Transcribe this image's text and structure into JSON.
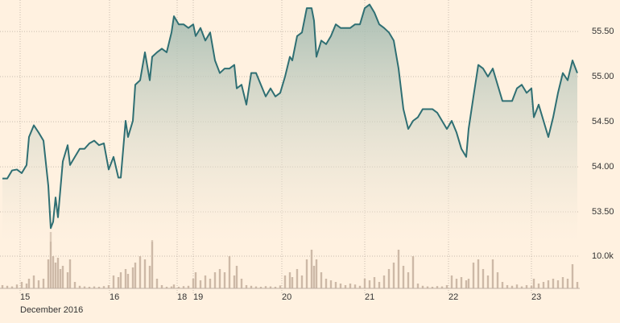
{
  "chart_data": {
    "type": "line",
    "x": [
      3,
      9,
      15,
      21,
      27,
      33,
      36,
      42,
      48,
      54,
      60,
      63,
      66,
      69,
      72,
      75,
      78,
      84,
      87,
      93,
      99,
      105,
      111,
      117,
      123,
      129,
      135,
      141,
      147,
      150,
      156,
      159,
      165,
      168,
      174,
      180,
      186,
      189,
      195,
      201,
      207,
      213,
      216,
      222,
      228,
      234,
      240,
      243,
      249,
      255,
      261,
      267,
      273,
      279,
      285,
      291,
      294,
      300,
      306,
      312,
      318,
      324,
      330,
      336,
      342,
      348,
      354,
      360,
      363,
      369,
      375,
      381,
      387,
      390,
      393,
      399,
      405,
      411,
      417,
      423,
      429,
      435,
      441,
      447,
      453,
      459,
      465,
      471,
      477,
      483,
      489,
      495,
      501,
      507,
      513,
      519,
      525,
      531,
      537,
      543,
      549,
      555,
      561,
      567,
      573,
      579,
      582,
      588,
      594,
      600,
      606,
      612,
      618,
      624,
      630,
      636,
      642,
      648,
      654,
      660,
      663,
      669,
      675,
      681,
      687,
      693,
      699,
      705,
      711,
      717
    ],
    "xlim": [
      0,
      720
    ],
    "xticks": [
      {
        "value": 25,
        "label": "15"
      },
      {
        "value": 136,
        "label": "16"
      },
      {
        "value": 220,
        "label": "18"
      },
      {
        "value": 240,
        "label": "19"
      },
      {
        "value": 350,
        "label": "20"
      },
      {
        "value": 453,
        "label": "21"
      },
      {
        "value": 557,
        "label": "22"
      },
      {
        "value": 660,
        "label": "23"
      }
    ],
    "x_sublabel": "December 2016",
    "ylim": [
      53.17,
      55.85
    ],
    "yticks": [
      {
        "value": 53.5,
        "label": "53.50"
      },
      {
        "value": 54,
        "label": "54.00"
      },
      {
        "value": 54.5,
        "label": "54.50"
      },
      {
        "value": 55,
        "label": "55.00"
      },
      {
        "value": 55.5,
        "label": "55.50"
      }
    ],
    "grid": true,
    "series": [
      {
        "color": "#2f6f73",
        "values": [
          53.87,
          53.87,
          53.96,
          53.97,
          53.93,
          54.02,
          54.33,
          54.46,
          54.38,
          54.29,
          53.79,
          53.32,
          53.39,
          53.66,
          53.44,
          53.75,
          54.06,
          54.24,
          54.02,
          54.11,
          54.2,
          54.2,
          54.26,
          54.29,
          54.24,
          54.26,
          53.97,
          54.11,
          53.88,
          53.88,
          54.51,
          54.33,
          54.51,
          54.91,
          54.96,
          55.27,
          54.96,
          55.22,
          55.27,
          55.31,
          55.27,
          55.49,
          55.67,
          55.58,
          55.58,
          55.54,
          55.58,
          55.45,
          55.54,
          55.4,
          55.49,
          55.18,
          55.04,
          55.09,
          55.09,
          55.13,
          54.87,
          54.91,
          54.69,
          55.04,
          55.04,
          54.91,
          54.78,
          54.87,
          54.78,
          54.82,
          55.0,
          55.22,
          55.18,
          55.45,
          55.49,
          55.76,
          55.76,
          55.62,
          55.22,
          55.4,
          55.36,
          55.45,
          55.58,
          55.54,
          55.54,
          55.54,
          55.58,
          55.58,
          55.76,
          55.8,
          55.71,
          55.58,
          55.54,
          55.49,
          55.4,
          55.09,
          54.64,
          54.42,
          54.51,
          54.55,
          54.64,
          54.64,
          54.64,
          54.6,
          54.51,
          54.42,
          54.51,
          54.38,
          54.2,
          54.11,
          54.42,
          54.78,
          55.13,
          55.09,
          55.0,
          55.09,
          54.91,
          54.73,
          54.73,
          54.73,
          54.87,
          54.91,
          54.82,
          54.87,
          54.55,
          54.69,
          54.51,
          54.33,
          54.55,
          54.82,
          55.04,
          54.96,
          55.18,
          55.04
        ]
      }
    ],
    "volume": {
      "type": "bar",
      "color": "#cdb9a7",
      "ylim": [
        0,
        17500
      ],
      "yticks": [
        {
          "value": 10000,
          "label": "10.0k"
        }
      ],
      "values": [
        1000,
        800,
        600,
        1200,
        2000,
        1500,
        3000,
        4000,
        2500,
        3000,
        9000,
        17500,
        10000,
        8000,
        9500,
        6000,
        7000,
        5000,
        9000,
        2000,
        800,
        600,
        500,
        600,
        500,
        700,
        1000,
        4000,
        3500,
        5000,
        6000,
        4500,
        6500,
        8000,
        10000,
        9000,
        7000,
        15000,
        3000,
        1000,
        500,
        600,
        1200,
        500,
        700,
        800,
        3000,
        5000,
        2500,
        4000,
        3000,
        5000,
        6000,
        5000,
        10000,
        4000,
        7000,
        3000,
        1000,
        800,
        600,
        500,
        700,
        600,
        500,
        900,
        4000,
        5000,
        3500,
        6000,
        4000,
        9000,
        12000,
        7000,
        9000,
        5000,
        3000,
        2500,
        2000,
        1500,
        1000,
        1500,
        1200,
        800,
        3000,
        2500,
        3500,
        2000,
        4000,
        6000,
        8000,
        12000,
        7000,
        5000,
        10000,
        1500,
        800,
        600,
        500,
        700,
        600,
        1000,
        4000,
        3000,
        3500,
        2500,
        3000,
        8000,
        9000,
        6000,
        4000,
        9000,
        5000,
        2000,
        1000,
        800,
        1200,
        600,
        1000,
        800,
        3000,
        1500,
        2000,
        2500,
        3000,
        2500,
        3500,
        3000,
        7500,
        2000
      ]
    }
  }
}
